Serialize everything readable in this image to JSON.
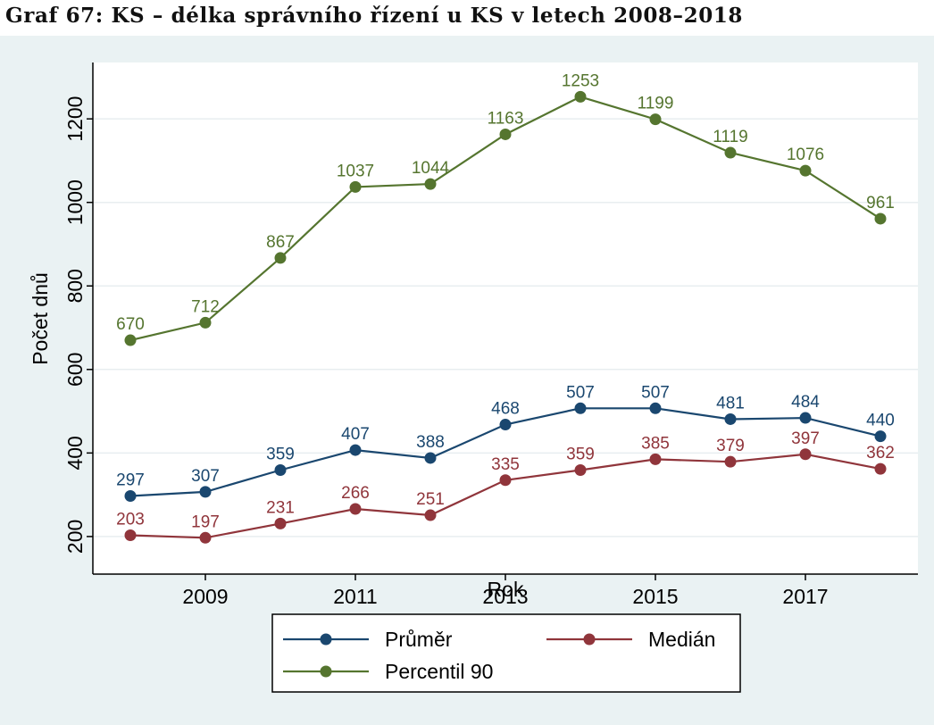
{
  "caption": "Graf 67: KS – délka správního řízení u KS v letech 2008–2018",
  "chart_data": {
    "type": "line",
    "title": "",
    "xlabel": "Rok",
    "ylabel": "Počet dnů",
    "x": [
      2008,
      2009,
      2010,
      2011,
      2012,
      2013,
      2014,
      2015,
      2016,
      2017,
      2018
    ],
    "x_ticks": [
      2009,
      2011,
      2013,
      2015,
      2017
    ],
    "y_ticks": [
      200,
      400,
      600,
      800,
      1000,
      1200
    ],
    "xlim": [
      2007.5,
      2018.5
    ],
    "ylim": [
      110,
      1335
    ],
    "grid": true,
    "legend_position": "bottom",
    "series": [
      {
        "name": "Průměr",
        "color": "#1a476f",
        "values": [
          297,
          307,
          359,
          407,
          388,
          468,
          507,
          507,
          481,
          484,
          440
        ]
      },
      {
        "name": "Medián",
        "color": "#90353b",
        "values": [
          203,
          197,
          231,
          266,
          251,
          335,
          359,
          385,
          379,
          397,
          362
        ]
      },
      {
        "name": "Percentil 90",
        "color": "#55752f",
        "values": [
          670,
          712,
          867,
          1037,
          1044,
          1163,
          1253,
          1199,
          1119,
          1076,
          961
        ]
      }
    ]
  }
}
